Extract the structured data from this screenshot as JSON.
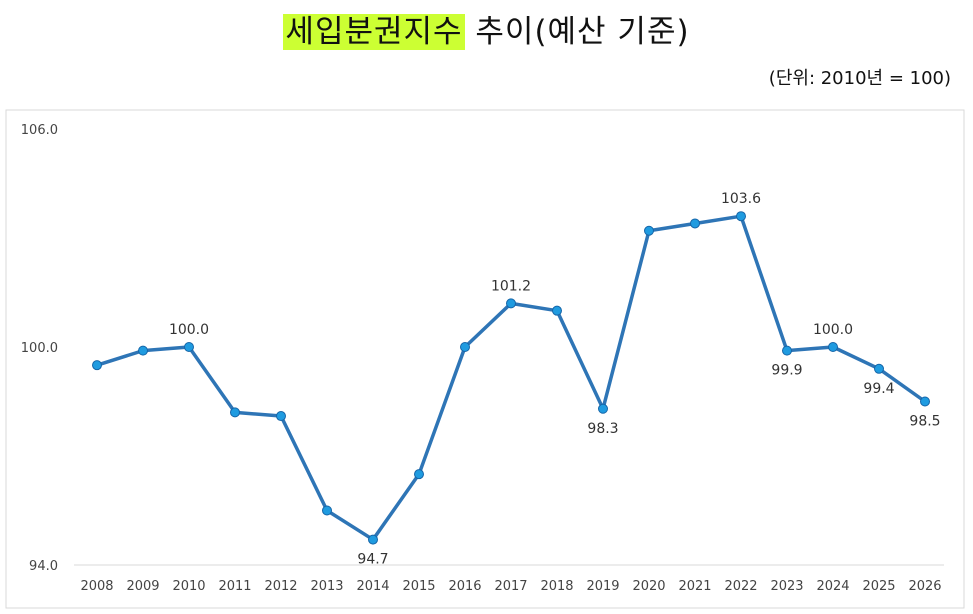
{
  "title": {
    "highlight": "세입분권지수",
    "rest": " 추이(예산 기준)"
  },
  "unit": "(단위: 2010년 = 100)",
  "colors": {
    "line": "#2e75b6",
    "marker": "#1f9be0",
    "highlight": "#ccff33",
    "grid": "#d9d9d9"
  },
  "chart_data": {
    "type": "line",
    "title": "세입분권지수 추이(예산 기준)",
    "xlabel": "",
    "ylabel": "",
    "ylim": [
      94.0,
      106.0
    ],
    "yticks": [
      "106.0",
      "100.0",
      "94.0"
    ],
    "ytick_values": [
      106,
      100,
      94
    ],
    "grid": "horizontal baseline only",
    "categories": [
      "2008",
      "2009",
      "2010",
      "2011",
      "2012",
      "2013",
      "2014",
      "2015",
      "2016",
      "2017",
      "2018",
      "2019",
      "2020",
      "2021",
      "2022",
      "2023",
      "2024",
      "2025",
      "2026"
    ],
    "series": [
      {
        "name": "",
        "values": [
          99.5,
          99.9,
          100.0,
          98.2,
          98.1,
          95.5,
          94.7,
          96.5,
          100.0,
          101.2,
          101.0,
          98.3,
          103.2,
          103.4,
          103.6,
          99.9,
          100.0,
          99.4,
          98.5
        ]
      }
    ],
    "data_labels": [
      {
        "index": 2,
        "text": "100.0",
        "pos": "above"
      },
      {
        "index": 6,
        "text": "94.7",
        "pos": "below"
      },
      {
        "index": 9,
        "text": "101.2",
        "pos": "above"
      },
      {
        "index": 11,
        "text": "98.3",
        "pos": "below"
      },
      {
        "index": 14,
        "text": "103.6",
        "pos": "above"
      },
      {
        "index": 15,
        "text": "99.9",
        "pos": "below"
      },
      {
        "index": 16,
        "text": "100.0",
        "pos": "above"
      },
      {
        "index": 17,
        "text": "99.4",
        "pos": "below"
      },
      {
        "index": 18,
        "text": "98.5",
        "pos": "below"
      }
    ]
  }
}
